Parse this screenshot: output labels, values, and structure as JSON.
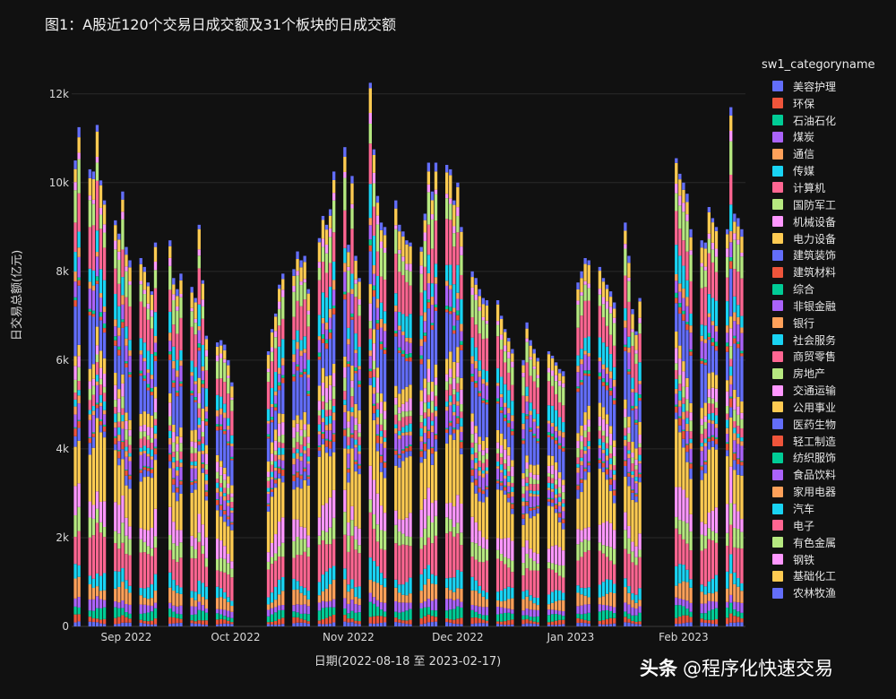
{
  "chart_data": {
    "type": "bar",
    "stacked": true,
    "title": "图1：A股近120个交易日成交额及31个板块的日成交额",
    "xlabel": "日期(2022-08-18 至 2023-02-17)",
    "ylabel": "日交易总额(亿元)",
    "ylim": [
      0,
      12500
    ],
    "yticks": [
      {
        "value": 0,
        "label": "0"
      },
      {
        "value": 2000,
        "label": "2k"
      },
      {
        "value": 4000,
        "label": "4k"
      },
      {
        "value": 6000,
        "label": "6k"
      },
      {
        "value": 8000,
        "label": "8k"
      },
      {
        "value": 10000,
        "label": "10k"
      },
      {
        "value": 12000,
        "label": "12k"
      }
    ],
    "xticks": [
      {
        "date": "2022-09-01",
        "label": "Sep 2022"
      },
      {
        "date": "2022-10-01",
        "label": "Oct 2022"
      },
      {
        "date": "2022-11-01",
        "label": "Nov 2022"
      },
      {
        "date": "2022-12-01",
        "label": "Dec 2022"
      },
      {
        "date": "2023-01-01",
        "label": "Jan 2023"
      },
      {
        "date": "2023-02-01",
        "label": "Feb 2023"
      }
    ],
    "x_range": [
      "2022-08-17",
      "2023-02-18"
    ],
    "grid": true,
    "legend_title": "sw1_categoryname",
    "legend_position": "right",
    "days": [
      {
        "date": "2022-08-18",
        "total": 10500
      },
      {
        "date": "2022-08-19",
        "total": 11250
      },
      {
        "date": "2022-08-22",
        "total": 10300
      },
      {
        "date": "2022-08-23",
        "total": 10250
      },
      {
        "date": "2022-08-24",
        "total": 11300
      },
      {
        "date": "2022-08-25",
        "total": 10050
      },
      {
        "date": "2022-08-26",
        "total": 9600
      },
      {
        "date": "2022-08-29",
        "total": 9150
      },
      {
        "date": "2022-08-30",
        "total": 8850
      },
      {
        "date": "2022-08-31",
        "total": 9800
      },
      {
        "date": "2022-09-01",
        "total": 8550
      },
      {
        "date": "2022-09-02",
        "total": 8250
      },
      {
        "date": "2022-09-05",
        "total": 8300
      },
      {
        "date": "2022-09-06",
        "total": 8100
      },
      {
        "date": "2022-09-07",
        "total": 7750
      },
      {
        "date": "2022-09-08",
        "total": 7550
      },
      {
        "date": "2022-09-09",
        "total": 8650
      },
      {
        "date": "2022-09-13",
        "total": 8700
      },
      {
        "date": "2022-09-14",
        "total": 7850
      },
      {
        "date": "2022-09-15",
        "total": 7600
      },
      {
        "date": "2022-09-16",
        "total": 7950
      },
      {
        "date": "2022-09-19",
        "total": 7650
      },
      {
        "date": "2022-09-20",
        "total": 7400
      },
      {
        "date": "2022-09-21",
        "total": 9050
      },
      {
        "date": "2022-09-22",
        "total": 7800
      },
      {
        "date": "2022-09-23",
        "total": 6550
      },
      {
        "date": "2022-09-26",
        "total": 6400
      },
      {
        "date": "2022-09-27",
        "total": 6450
      },
      {
        "date": "2022-09-28",
        "total": 6350
      },
      {
        "date": "2022-09-29",
        "total": 6000
      },
      {
        "date": "2022-09-30",
        "total": 5500
      },
      {
        "date": "2022-10-10",
        "total": 6200
      },
      {
        "date": "2022-10-11",
        "total": 6700
      },
      {
        "date": "2022-10-12",
        "total": 7050
      },
      {
        "date": "2022-10-13",
        "total": 7700
      },
      {
        "date": "2022-10-14",
        "total": 7950
      },
      {
        "date": "2022-10-17",
        "total": 8050
      },
      {
        "date": "2022-10-18",
        "total": 8450
      },
      {
        "date": "2022-10-19",
        "total": 8250
      },
      {
        "date": "2022-10-20",
        "total": 8350
      },
      {
        "date": "2022-10-21",
        "total": 7600
      },
      {
        "date": "2022-10-24",
        "total": 8750
      },
      {
        "date": "2022-10-25",
        "total": 9250
      },
      {
        "date": "2022-10-26",
        "total": 9050
      },
      {
        "date": "2022-10-27",
        "total": 9400
      },
      {
        "date": "2022-10-28",
        "total": 10250
      },
      {
        "date": "2022-10-31",
        "total": 10800
      },
      {
        "date": "2022-11-01",
        "total": 8600
      },
      {
        "date": "2022-11-02",
        "total": 10150
      },
      {
        "date": "2022-11-03",
        "total": 8350
      },
      {
        "date": "2022-11-04",
        "total": 7850
      },
      {
        "date": "2022-11-07",
        "total": 12250
      },
      {
        "date": "2022-11-08",
        "total": 10750
      },
      {
        "date": "2022-11-09",
        "total": 9700
      },
      {
        "date": "2022-11-10",
        "total": 9100
      },
      {
        "date": "2022-11-11",
        "total": 9000
      },
      {
        "date": "2022-11-14",
        "total": 9600
      },
      {
        "date": "2022-11-15",
        "total": 9050
      },
      {
        "date": "2022-11-16",
        "total": 8900
      },
      {
        "date": "2022-11-17",
        "total": 8700
      },
      {
        "date": "2022-11-18",
        "total": 8650
      },
      {
        "date": "2022-11-21",
        "total": 8550
      },
      {
        "date": "2022-11-22",
        "total": 9300
      },
      {
        "date": "2022-11-23",
        "total": 10450
      },
      {
        "date": "2022-11-24",
        "total": 9800
      },
      {
        "date": "2022-11-25",
        "total": 10450
      },
      {
        "date": "2022-11-28",
        "total": 10400
      },
      {
        "date": "2022-11-29",
        "total": 10300
      },
      {
        "date": "2022-11-30",
        "total": 9600
      },
      {
        "date": "2022-12-01",
        "total": 10000
      },
      {
        "date": "2022-12-02",
        "total": 9000
      },
      {
        "date": "2022-12-05",
        "total": 8000
      },
      {
        "date": "2022-12-06",
        "total": 7850
      },
      {
        "date": "2022-12-07",
        "total": 7600
      },
      {
        "date": "2022-12-08",
        "total": 7400
      },
      {
        "date": "2022-12-09",
        "total": 7350
      },
      {
        "date": "2022-12-12",
        "total": 7350
      },
      {
        "date": "2022-12-13",
        "total": 7000
      },
      {
        "date": "2022-12-14",
        "total": 6700
      },
      {
        "date": "2022-12-15",
        "total": 6500
      },
      {
        "date": "2022-12-16",
        "total": 6250
      },
      {
        "date": "2022-12-19",
        "total": 6000
      },
      {
        "date": "2022-12-20",
        "total": 6850
      },
      {
        "date": "2022-12-21",
        "total": 6450
      },
      {
        "date": "2022-12-22",
        "total": 6250
      },
      {
        "date": "2022-12-23",
        "total": 6050
      },
      {
        "date": "2022-12-26",
        "total": 6200
      },
      {
        "date": "2022-12-27",
        "total": 6100
      },
      {
        "date": "2022-12-28",
        "total": 5950
      },
      {
        "date": "2022-12-29",
        "total": 5800
      },
      {
        "date": "2022-12-30",
        "total": 5750
      },
      {
        "date": "2023-01-03",
        "total": 7750
      },
      {
        "date": "2023-01-04",
        "total": 8000
      },
      {
        "date": "2023-01-05",
        "total": 8300
      },
      {
        "date": "2023-01-06",
        "total": 8250
      },
      {
        "date": "2023-01-09",
        "total": 8100
      },
      {
        "date": "2023-01-10",
        "total": 7850
      },
      {
        "date": "2023-01-11",
        "total": 7700
      },
      {
        "date": "2023-01-12",
        "total": 7550
      },
      {
        "date": "2023-01-13",
        "total": 7300
      },
      {
        "date": "2023-01-16",
        "total": 9100
      },
      {
        "date": "2023-01-17",
        "total": 8350
      },
      {
        "date": "2023-01-18",
        "total": 7150
      },
      {
        "date": "2023-01-19",
        "total": 6650
      },
      {
        "date": "2023-01-20",
        "total": 7400
      },
      {
        "date": "2023-01-30",
        "total": 10550
      },
      {
        "date": "2023-01-31",
        "total": 10200
      },
      {
        "date": "2023-02-01",
        "total": 10000
      },
      {
        "date": "2023-02-02",
        "total": 9750
      },
      {
        "date": "2023-02-03",
        "total": 8950
      },
      {
        "date": "2023-02-06",
        "total": 8700
      },
      {
        "date": "2023-02-07",
        "total": 8650
      },
      {
        "date": "2023-02-08",
        "total": 9450
      },
      {
        "date": "2023-02-09",
        "total": 9200
      },
      {
        "date": "2023-02-10",
        "total": 9000
      },
      {
        "date": "2023-02-13",
        "total": 8950
      },
      {
        "date": "2023-02-14",
        "total": 11700
      },
      {
        "date": "2023-02-15",
        "total": 9300
      },
      {
        "date": "2023-02-16",
        "total": 9200
      },
      {
        "date": "2023-02-17",
        "total": 8950
      }
    ],
    "sectors": [
      {
        "name": "美容护理",
        "color": "#636efa",
        "share": 0.008
      },
      {
        "name": "环保",
        "color": "#ef553b",
        "share": 0.012
      },
      {
        "name": "石油石化",
        "color": "#00cc96",
        "share": 0.02
      },
      {
        "name": "煤炭",
        "color": "#ab63fa",
        "share": 0.02
      },
      {
        "name": "通信",
        "color": "#ffa15a",
        "share": 0.03
      },
      {
        "name": "传媒",
        "color": "#19d3f3",
        "share": 0.03
      },
      {
        "name": "计算机",
        "color": "#ff6692",
        "share": 0.08
      },
      {
        "name": "国防军工",
        "color": "#b6e880",
        "share": 0.035
      },
      {
        "name": "机械设备",
        "color": "#ff97ff",
        "share": 0.05
      },
      {
        "name": "电力设备",
        "color": "#fecb52",
        "share": 0.12
      },
      {
        "name": "建筑装饰",
        "color": "#636efa",
        "share": 0.02
      },
      {
        "name": "建筑材料",
        "color": "#ef553b",
        "share": 0.012
      },
      {
        "name": "综合",
        "color": "#00cc96",
        "share": 0.003
      },
      {
        "name": "非银金融",
        "color": "#ab63fa",
        "share": 0.03
      },
      {
        "name": "银行",
        "color": "#ffa15a",
        "share": 0.012
      },
      {
        "name": "社会服务",
        "color": "#19d3f3",
        "share": 0.015
      },
      {
        "name": "商贸零售",
        "color": "#ff6692",
        "share": 0.02
      },
      {
        "name": "房地产",
        "color": "#b6e880",
        "share": 0.02
      },
      {
        "name": "交通运输",
        "color": "#ff97ff",
        "share": 0.025
      },
      {
        "name": "公用事业",
        "color": "#fecb52",
        "share": 0.03
      },
      {
        "name": "医药生物",
        "color": "#636efa",
        "share": 0.09
      },
      {
        "name": "轻工制造",
        "color": "#ef553b",
        "share": 0.01
      },
      {
        "name": "纺织服饰",
        "color": "#00cc96",
        "share": 0.008
      },
      {
        "name": "食品饮料",
        "color": "#ab63fa",
        "share": 0.035
      },
      {
        "name": "家用电器",
        "color": "#ffa15a",
        "share": 0.015
      },
      {
        "name": "汽车",
        "color": "#19d3f3",
        "share": 0.045
      },
      {
        "name": "电子",
        "color": "#ff6692",
        "share": 0.08
      },
      {
        "name": "有色金属",
        "color": "#b6e880",
        "share": 0.05
      },
      {
        "name": "钢铁",
        "color": "#ff97ff",
        "share": 0.015
      },
      {
        "name": "基础化工",
        "color": "#fecb52",
        "share": 0.04
      },
      {
        "name": "农林牧渔",
        "color": "#636efa",
        "share": 0.015
      }
    ]
  },
  "watermark": {
    "prefix": "头条",
    "text": "@程序化快速交易"
  }
}
